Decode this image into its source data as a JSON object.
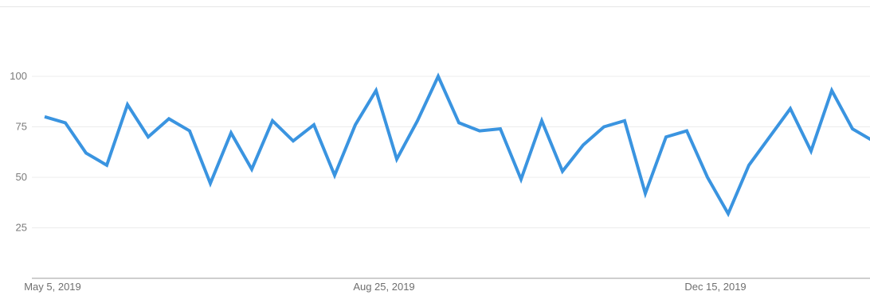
{
  "chart_data": {
    "type": "line",
    "title": "",
    "xlabel": "",
    "ylabel": "",
    "y_ticks": [
      "25",
      "50",
      "75",
      "100"
    ],
    "ylim": [
      0,
      100
    ],
    "x_tick_labels": [
      "May 5, 2019",
      "Aug 25, 2019",
      "Dec 15, 2019"
    ],
    "x_tick_indices": [
      0,
      16,
      32
    ],
    "grid": true,
    "series": [
      {
        "color": "#3a94e0",
        "values": [
          80,
          77,
          62,
          56,
          86,
          70,
          79,
          73,
          47,
          72,
          54,
          78,
          68,
          76,
          51,
          76,
          93,
          59,
          78,
          100,
          77,
          73,
          74,
          49,
          78,
          53,
          66,
          75,
          78,
          42,
          70,
          73,
          50,
          32,
          56,
          70,
          84,
          63,
          93,
          74,
          68
        ]
      }
    ]
  }
}
